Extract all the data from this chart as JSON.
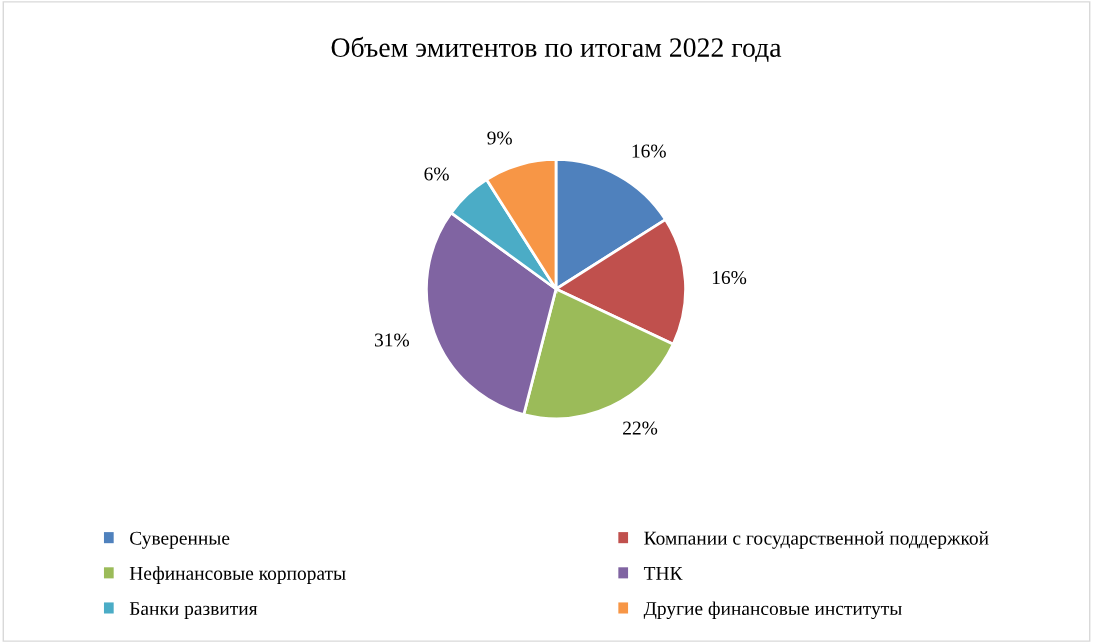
{
  "chart_data": {
    "type": "pie",
    "title": "Объем эмитентов по итогам 2022 года",
    "categories": [
      "Суверенные",
      "Компании с государственной поддержкой",
      "Нефинансовые корпораты",
      "ТНК",
      "Банки развития",
      "Другие финансовые институты"
    ],
    "values": [
      16,
      16,
      22,
      31,
      6,
      9
    ],
    "colors": [
      "#4f81bd",
      "#c0504d",
      "#9bbb59",
      "#8064a2",
      "#4bacc6",
      "#f79646"
    ],
    "value_labels": [
      "16%",
      "16%",
      "22%",
      "31%",
      "6%",
      "9%"
    ],
    "legend": "bottom"
  }
}
